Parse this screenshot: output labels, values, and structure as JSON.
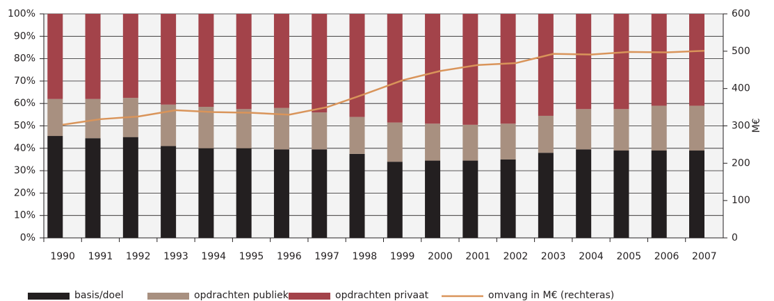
{
  "chart_data": {
    "type": "bar",
    "categories": [
      "1990",
      "1991",
      "1992",
      "1993",
      "1994",
      "1995",
      "1996",
      "1997",
      "1998",
      "1999",
      "2000",
      "2001",
      "2002",
      "2003",
      "2004",
      "2005",
      "2006",
      "2007"
    ],
    "series": [
      {
        "name": "basis/doel",
        "color": "#231f20",
        "values": [
          45.5,
          44.5,
          45,
          41,
          40,
          40,
          39.5,
          39.5,
          37.5,
          34,
          34.5,
          34.5,
          35,
          38,
          39.5,
          39,
          39,
          39
        ]
      },
      {
        "name": "opdrachten publiek",
        "color": "#a89080",
        "values": [
          16.5,
          17.5,
          17.5,
          18.5,
          18.5,
          17.5,
          18.5,
          16.5,
          16.5,
          17.5,
          16.5,
          16,
          16,
          16.5,
          18,
          18.5,
          20,
          20
        ]
      },
      {
        "name": "opdrachten privaat",
        "color": "#a3434a",
        "values": [
          38,
          38,
          37.5,
          40.5,
          41.5,
          42.5,
          42,
          44,
          46,
          48.5,
          49,
          49.5,
          49,
          45.5,
          42.5,
          42.5,
          41,
          41
        ]
      },
      {
        "name": "omvang in M€ (rechteras)",
        "color": "#d9945a",
        "type": "line",
        "axis": "y2",
        "values": [
          303,
          318,
          325,
          342,
          337,
          335,
          330,
          350,
          385,
          422,
          447,
          463,
          468,
          493,
          491,
          498,
          497,
          501
        ]
      }
    ],
    "ylim": [
      0,
      100
    ],
    "yticks": [
      {
        "value": 0,
        "label": "0%"
      },
      {
        "value": 10,
        "label": "10%"
      },
      {
        "value": 20,
        "label": "20%"
      },
      {
        "value": 30,
        "label": "30%"
      },
      {
        "value": 40,
        "label": "40%"
      },
      {
        "value": 50,
        "label": "50%"
      },
      {
        "value": 60,
        "label": "60%"
      },
      {
        "value": 70,
        "label": "70%"
      },
      {
        "value": 80,
        "label": "80%"
      },
      {
        "value": 90,
        "label": "90%"
      },
      {
        "value": 100,
        "label": "100%"
      }
    ],
    "y2lim": [
      0,
      600
    ],
    "y2ticks": [
      0,
      100,
      200,
      300,
      400,
      500,
      600
    ],
    "y2label": "M€",
    "grid": true,
    "legend": "bottom"
  }
}
